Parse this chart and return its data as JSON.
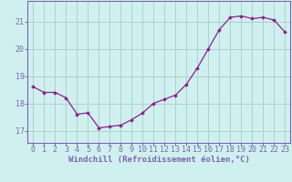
{
  "x": [
    0,
    1,
    2,
    3,
    4,
    5,
    6,
    7,
    8,
    9,
    10,
    11,
    12,
    13,
    14,
    15,
    16,
    17,
    18,
    19,
    20,
    21,
    22,
    23
  ],
  "y": [
    18.6,
    18.4,
    18.4,
    18.2,
    17.6,
    17.65,
    17.1,
    17.15,
    17.2,
    17.4,
    17.65,
    18.0,
    18.15,
    18.3,
    18.7,
    19.3,
    20.0,
    20.7,
    21.15,
    21.2,
    21.1,
    21.15,
    21.05,
    20.6
  ],
  "line_color": "#882288",
  "marker": "D",
  "marker_size": 2.0,
  "line_width": 0.9,
  "xlim": [
    -0.5,
    23.5
  ],
  "ylim": [
    16.55,
    21.75
  ],
  "yticks": [
    17,
    18,
    19,
    20,
    21
  ],
  "xticks": [
    0,
    1,
    2,
    3,
    4,
    5,
    6,
    7,
    8,
    9,
    10,
    11,
    12,
    13,
    14,
    15,
    16,
    17,
    18,
    19,
    20,
    21,
    22,
    23
  ],
  "xlabel": "Windchill (Refroidissement éolien,°C)",
  "xlabel_fontsize": 6.5,
  "tick_fontsize": 6.0,
  "bg_color": "#d0f0f0",
  "grid_color": "#aacccc",
  "axis_color": "#7766aa",
  "spine_color": "#7766aa"
}
